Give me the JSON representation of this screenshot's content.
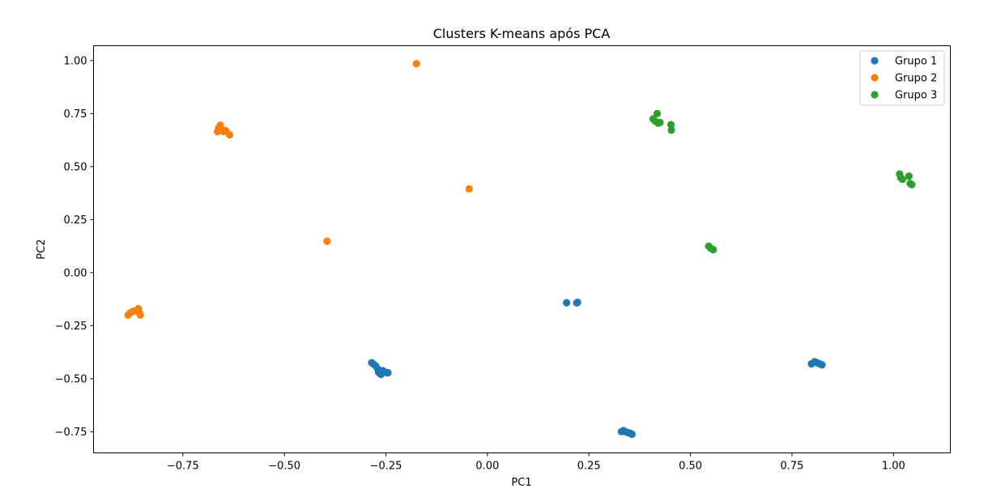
{
  "chart_data": {
    "type": "scatter",
    "title": "Clusters K-means após PCA",
    "xlabel": "PC1",
    "ylabel": "PC2",
    "xlim": [
      -0.97,
      1.14
    ],
    "ylim": [
      -0.85,
      1.07
    ],
    "xticks": [
      -0.75,
      -0.5,
      -0.25,
      0.0,
      0.25,
      0.5,
      0.75,
      1.0
    ],
    "xtick_labels": [
      "−0.75",
      "−0.50",
      "−0.25",
      "0.00",
      "0.25",
      "0.50",
      "0.75",
      "1.00"
    ],
    "yticks": [
      -0.75,
      -0.5,
      -0.25,
      0.0,
      0.25,
      0.5,
      0.75,
      1.0
    ],
    "ytick_labels": [
      "−0.75",
      "−0.50",
      "−0.25",
      "0.00",
      "0.25",
      "0.50",
      "0.75",
      "1.00"
    ],
    "grid": false,
    "legend_position": "top-right",
    "series": [
      {
        "name": "Grupo 1",
        "color": "#1f77b4",
        "points": [
          [
            0.195,
            -0.142
          ],
          [
            0.22,
            -0.143
          ],
          [
            0.222,
            -0.14
          ],
          [
            -0.285,
            -0.425
          ],
          [
            -0.28,
            -0.432
          ],
          [
            -0.275,
            -0.44
          ],
          [
            -0.27,
            -0.455
          ],
          [
            -0.268,
            -0.47
          ],
          [
            -0.262,
            -0.48
          ],
          [
            -0.258,
            -0.462
          ],
          [
            -0.25,
            -0.47
          ],
          [
            -0.245,
            -0.472
          ],
          [
            0.33,
            -0.75
          ],
          [
            0.335,
            -0.745
          ],
          [
            0.342,
            -0.752
          ],
          [
            0.347,
            -0.755
          ],
          [
            0.352,
            -0.758
          ],
          [
            0.356,
            -0.762
          ],
          [
            0.798,
            -0.43
          ],
          [
            0.806,
            -0.42
          ],
          [
            0.812,
            -0.425
          ],
          [
            0.818,
            -0.43
          ],
          [
            0.824,
            -0.435
          ]
        ]
      },
      {
        "name": "Grupo 2",
        "color": "#ff7f0e",
        "points": [
          [
            -0.175,
            0.985
          ],
          [
            -0.665,
            0.665
          ],
          [
            -0.662,
            0.682
          ],
          [
            -0.658,
            0.695
          ],
          [
            -0.655,
            0.675
          ],
          [
            -0.65,
            0.665
          ],
          [
            -0.645,
            0.67
          ],
          [
            -0.635,
            0.65
          ],
          [
            -0.045,
            0.395
          ],
          [
            -0.395,
            0.148
          ],
          [
            -0.885,
            -0.2
          ],
          [
            -0.88,
            -0.19
          ],
          [
            -0.872,
            -0.182
          ],
          [
            -0.86,
            -0.17
          ],
          [
            -0.857,
            -0.19
          ],
          [
            -0.855,
            -0.2
          ]
        ]
      },
      {
        "name": "Grupo 3",
        "color": "#2ca02c",
        "points": [
          [
            0.408,
            0.725
          ],
          [
            0.413,
            0.715
          ],
          [
            0.418,
            0.75
          ],
          [
            0.42,
            0.705
          ],
          [
            0.425,
            0.708
          ],
          [
            0.452,
            0.698
          ],
          [
            0.453,
            0.672
          ],
          [
            0.545,
            0.125
          ],
          [
            0.55,
            0.115
          ],
          [
            0.556,
            0.108
          ],
          [
            1.015,
            0.465
          ],
          [
            1.018,
            0.448
          ],
          [
            1.022,
            0.44
          ],
          [
            1.038,
            0.455
          ],
          [
            1.041,
            0.42
          ],
          [
            1.045,
            0.415
          ]
        ]
      }
    ]
  }
}
